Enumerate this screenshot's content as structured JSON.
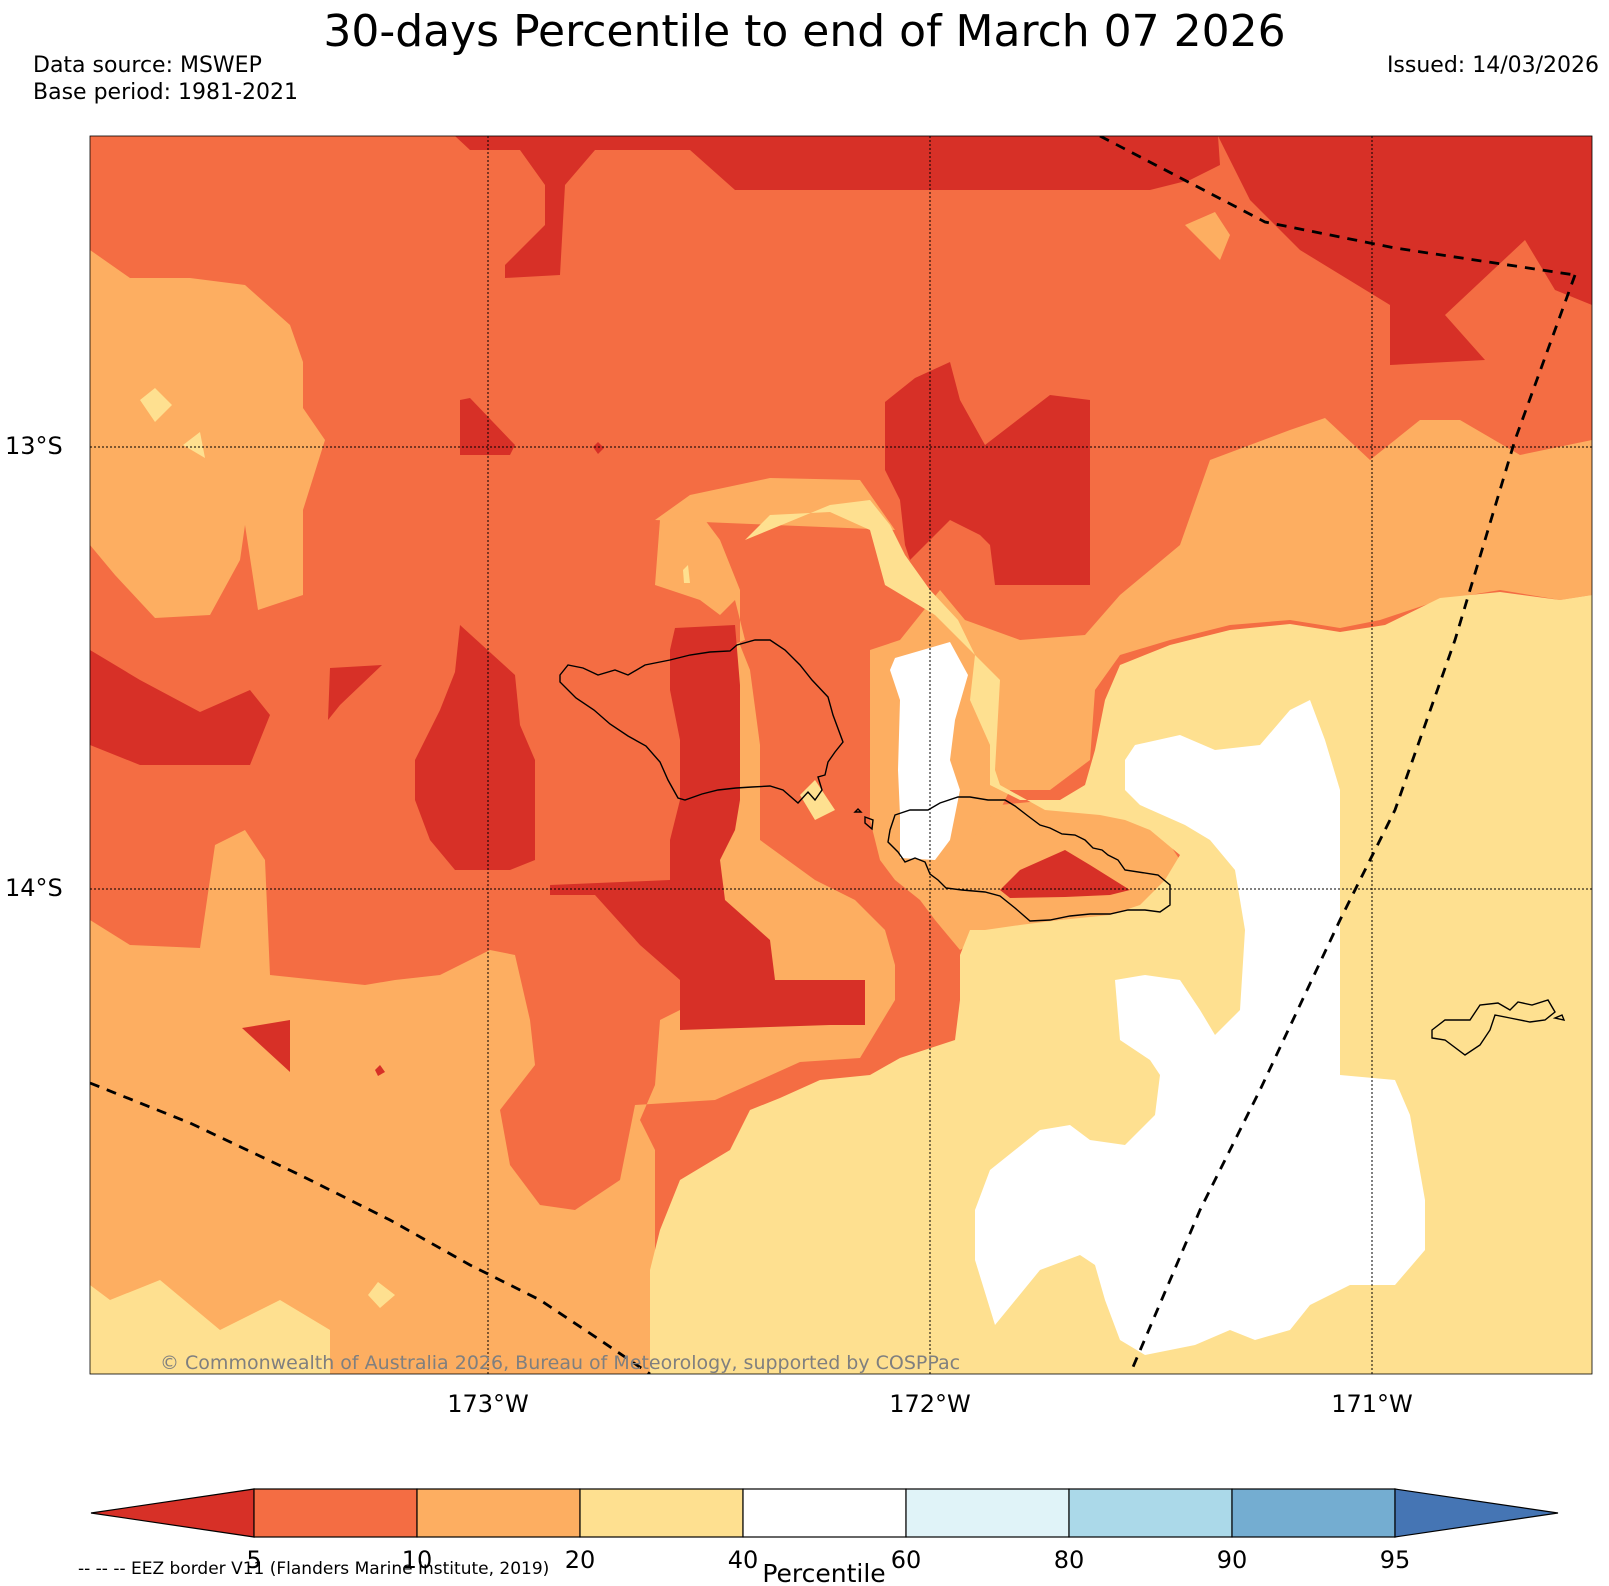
{
  "title": "30-days Percentile to end of March 07 2026",
  "data_source": "Data source: MSWEP",
  "base_period": "Base period: 1981-2021",
  "issued": "Issued: 14/03/2026",
  "copyright": "© Commonwealth of Australia 2026, Bureau of Meteorology, supported by COSPPac",
  "eez_note": "-- -- -- EEZ border V11 (Flanders Marine Institute, 2019)",
  "axes": {
    "lat_labels": [
      "13°S",
      "14°S"
    ],
    "lon_labels": [
      "173°W",
      "172°W",
      "171°W"
    ]
  },
  "legend": {
    "label": "Percentile",
    "ticks": [
      "5",
      "10",
      "20",
      "40",
      "60",
      "80",
      "90",
      "95"
    ],
    "colors": [
      "#d73027",
      "#f46d43",
      "#fdae61",
      "#fee090",
      "#ffffff",
      "#e0f3f8",
      "#abd9e9",
      "#74add1",
      "#4575b4"
    ]
  },
  "colors": {
    "p_lt5": "#d73027",
    "p_5_10": "#f46d43",
    "p_10_20": "#fdae61",
    "p_20_40": "#fee090",
    "p_40_60": "#ffffff"
  }
}
